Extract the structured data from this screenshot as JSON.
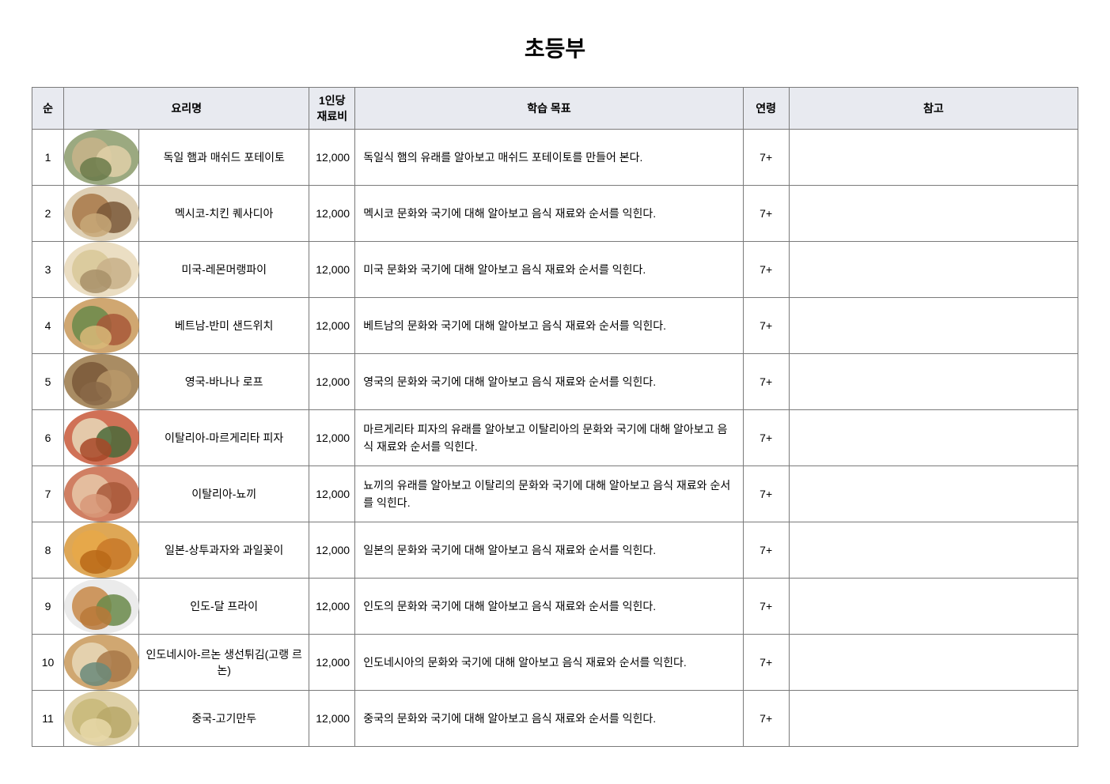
{
  "title": "초등부",
  "columns": {
    "num": "순",
    "name": "요리명",
    "cost": "1인당\n재료비",
    "goal": "학습 목표",
    "age": "연령",
    "note": "참고"
  },
  "rows": [
    {
      "num": "1",
      "name": "독일 햄과 매쉬드 포테이토",
      "cost": "12,000",
      "goal": "독일식 햄의 유래를 알아보고 매쉬드 포테이토를 만들어 본다.",
      "age": "7+",
      "note": "",
      "thumb_colors": [
        "#8a9a6a",
        "#c8b48a",
        "#e0d0a8",
        "#6a7a4a"
      ]
    },
    {
      "num": "2",
      "name": "멕시코-치킨 퀘사디아",
      "cost": "12,000",
      "goal": "멕시코 문화와 국기에 대해 알아보고 음식 재료와 순서를 익힌다.",
      "age": "7+",
      "note": "",
      "thumb_colors": [
        "#d8c8a8",
        "#a87848",
        "#7a5838",
        "#c8a878"
      ]
    },
    {
      "num": "3",
      "name": "미국-레몬머랭파이",
      "cost": "12,000",
      "goal": "미국 문화와 국기에 대해 알아보고 음식 재료와 순서를 익힌다.",
      "age": "7+",
      "note": "",
      "thumb_colors": [
        "#e8d8b8",
        "#d8c898",
        "#c8b088",
        "#a89068"
      ]
    },
    {
      "num": "4",
      "name": "베트남-반미 샌드위치",
      "cost": "12,000",
      "goal": "베트남의 문화와 국기에 대해 알아보고 음식 재료와 순서를 익힌다.",
      "age": "7+",
      "note": "",
      "thumb_colors": [
        "#c89858",
        "#6a8a4a",
        "#a85838",
        "#d8b878"
      ]
    },
    {
      "num": "5",
      "name": "영국-바나나 로프",
      "cost": "12,000",
      "goal": "영국의 문화와 국기에 대해 알아보고 음식 재료와 순서를 익힌다.",
      "age": "7+",
      "note": "",
      "thumb_colors": [
        "#9a7848",
        "#7a5838",
        "#b89868",
        "#8a6848"
      ]
    },
    {
      "num": "6",
      "name": "이탈리아-마르게리타 피자",
      "cost": "12,000",
      "goal": "마르게리타 피자의 유래를 알아보고 이탈리아의 문화와 국기에 대해 알아보고 음식 재료와 순서를 익힌다.",
      "age": "7+",
      "note": "",
      "thumb_colors": [
        "#c85838",
        "#e8d8b8",
        "#4a6a3a",
        "#a84828"
      ]
    },
    {
      "num": "7",
      "name": "이탈리아-뇨끼",
      "cost": "12,000",
      "goal": "뇨끼의 유래를 알아보고 이탈리의 문화와 국기에 대해 알아보고 음식 재료와 순서를 익힌다.",
      "age": "7+",
      "note": "",
      "thumb_colors": [
        "#c86848",
        "#e8c8a8",
        "#a85838",
        "#d89878"
      ]
    },
    {
      "num": "8",
      "name": "일본-상투과자와 과일꽂이",
      "cost": "12,000",
      "goal": "일본의 문화와 국기에 대해 알아보고 음식 재료와 순서를 익힌다.",
      "age": "7+",
      "note": "",
      "thumb_colors": [
        "#d89838",
        "#e8a848",
        "#c87828",
        "#b86818"
      ]
    },
    {
      "num": "9",
      "name": "인도-달 프라이",
      "cost": "12,000",
      "goal": "인도의 문화와 국기에 대해 알아보고 음식 재료와 순서를 익힌다.",
      "age": "7+",
      "note": "",
      "thumb_colors": [
        "#e8e8e8",
        "#c88848",
        "#6a8a4a",
        "#b87838"
      ]
    },
    {
      "num": "10",
      "name": "인도네시아-르논 생선튀김(고랭 르논)",
      "cost": "12,000",
      "goal": "인도네시아의 문화와 국기에 대해 알아보고 음식 재료와 순서를 익힌다.",
      "age": "7+",
      "note": "",
      "thumb_colors": [
        "#c89858",
        "#e8d8b8",
        "#a87848",
        "#6a8a7a"
      ]
    },
    {
      "num": "11",
      "name": "중국-고기만두",
      "cost": "12,000",
      "goal": "중국의 문화와 국기에 대해 알아보고 음식 재료와 순서를 익힌다.",
      "age": "7+",
      "note": "",
      "thumb_colors": [
        "#d8c898",
        "#c8b878",
        "#b8a868",
        "#e8d8a8"
      ]
    }
  ]
}
